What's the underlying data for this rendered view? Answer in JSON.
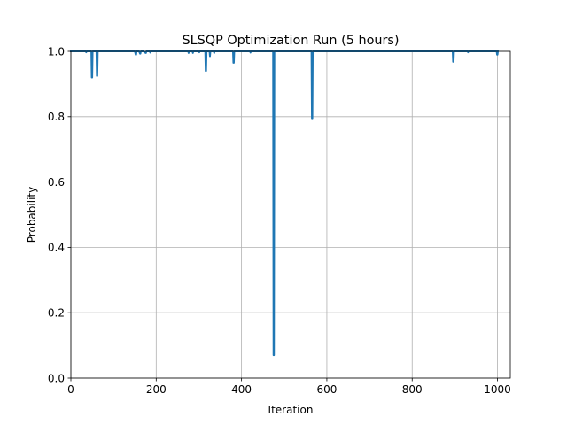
{
  "chart_data": {
    "type": "line",
    "title": "SLSQP Optimization Run (5 hours)",
    "xlabel": "Iteration",
    "ylabel": "Probability",
    "xlim": [
      0,
      1030
    ],
    "ylim": [
      0.0,
      1.0
    ],
    "xticks": [
      0,
      200,
      400,
      600,
      800,
      1000
    ],
    "yticks": [
      0.0,
      0.2,
      0.4,
      0.6,
      0.8,
      1.0
    ],
    "xtick_labels": [
      "0",
      "200",
      "400",
      "600",
      "800",
      "1000"
    ],
    "ytick_labels": [
      "0.0",
      "0.2",
      "0.4",
      "0.6",
      "0.8",
      "1.0"
    ],
    "grid": true,
    "series_color": "#1f77b4",
    "series": [
      {
        "x": [
          0,
          35,
          36,
          37,
          40,
          48,
          49,
          50,
          51,
          52,
          58,
          60,
          61,
          62,
          63,
          64,
          70,
          100,
          150,
          152,
          153,
          154,
          160,
          162,
          163,
          164,
          170,
          175,
          176,
          177,
          185,
          186,
          187,
          200,
          250,
          275,
          276,
          277,
          285,
          286,
          287,
          300,
          301,
          302,
          315,
          316,
          317,
          318,
          325,
          326,
          327,
          335,
          336,
          337,
          340,
          380,
          381,
          382,
          383,
          384,
          420,
          421,
          422,
          474,
          475,
          476,
          477,
          478,
          564,
          565,
          566,
          567,
          568,
          600,
          700,
          800,
          895,
          896,
          897,
          898,
          899,
          930,
          931,
          932,
          998,
          999,
          1000,
          1001
        ],
        "y": [
          1.0,
          1.0,
          0.997,
          1.0,
          1.0,
          1.0,
          0.92,
          0.92,
          1.0,
          1.0,
          1.0,
          1.0,
          0.925,
          0.925,
          1.0,
          1.0,
          1.0,
          1.0,
          1.0,
          0.99,
          0.99,
          1.0,
          1.0,
          0.993,
          0.993,
          1.0,
          1.0,
          0.995,
          0.995,
          1.0,
          1.0,
          0.996,
          1.0,
          1.0,
          1.0,
          1.0,
          0.995,
          1.0,
          1.0,
          0.995,
          1.0,
          1.0,
          0.997,
          1.0,
          1.0,
          0.94,
          0.94,
          1.0,
          1.0,
          0.985,
          1.0,
          1.0,
          0.995,
          1.0,
          1.0,
          1.0,
          0.965,
          0.965,
          1.0,
          1.0,
          1.0,
          0.996,
          1.0,
          1.0,
          0.07,
          0.07,
          1.0,
          1.0,
          1.0,
          0.795,
          0.795,
          1.0,
          1.0,
          1.0,
          1.0,
          1.0,
          1.0,
          0.968,
          0.968,
          1.0,
          1.0,
          1.0,
          0.997,
          1.0,
          1.0,
          0.99,
          0.99,
          1.0
        ]
      }
    ]
  }
}
